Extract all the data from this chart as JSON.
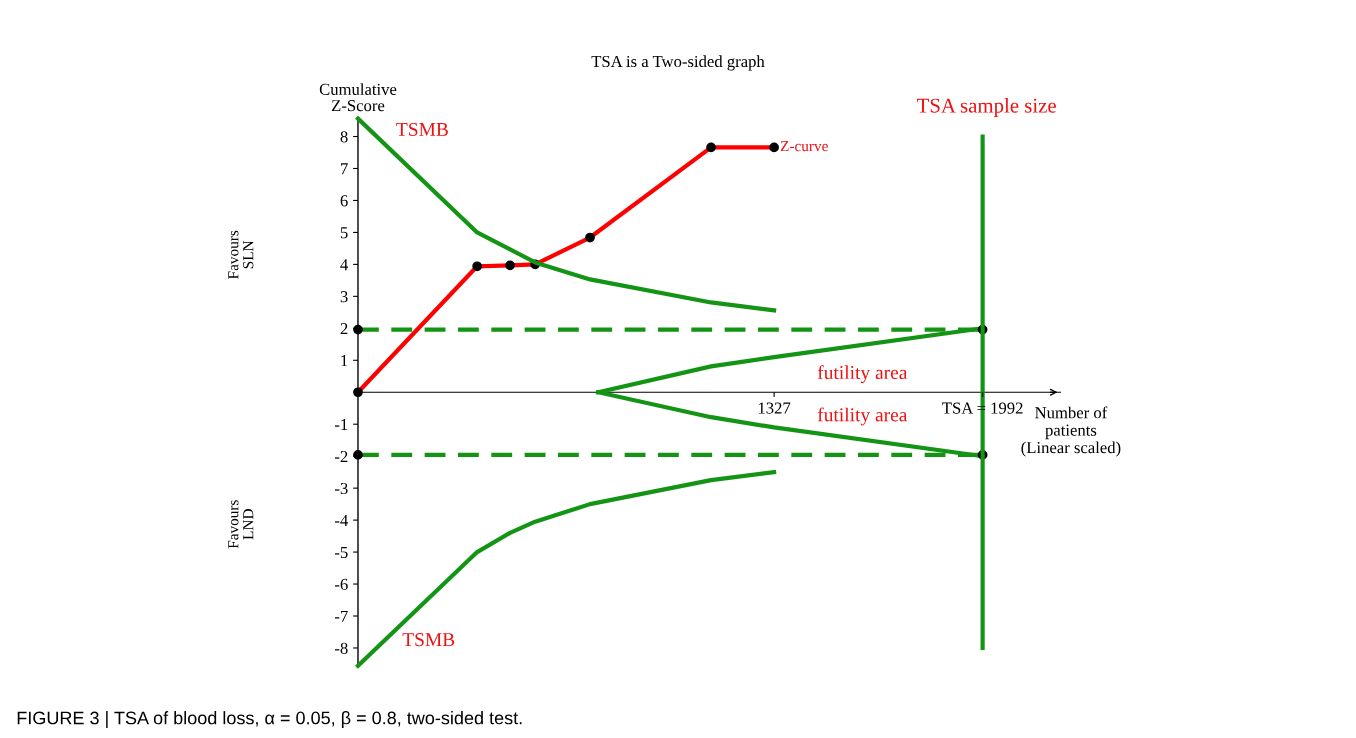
{
  "chart_data": {
    "type": "line",
    "title": "TSA is a Two-sided graph",
    "xlabel": "Number of\npatients\n(Linear scaled)",
    "ylabel": "Cumulative\nZ-Score",
    "xlim": [
      0,
      2240
    ],
    "xticks": [
      1327,
      {
        "value": 1992,
        "label": "TSA = 1992"
      }
    ],
    "grid": false,
    "ylim": [
      -8.6,
      8.6
    ],
    "yticks": [
      -8,
      -7,
      -6,
      -5,
      -4,
      -3,
      -2,
      -1,
      1,
      2,
      3,
      4,
      5,
      6,
      7,
      8
    ],
    "series": [
      {
        "color": "#ff0000",
        "x": [
          0,
          380,
          485,
          565,
          740,
          1126,
          1327
        ],
        "values": [
          0,
          3.94,
          3.97,
          4.0,
          4.84,
          7.66,
          7.66
        ],
        "marker": "circle",
        "line_style": "solid"
      },
      {
        "color": "#149414",
        "x": [
          0,
          380,
          485,
          565,
          740,
          1126,
          1327
        ],
        "values": [
          8.56,
          5.0,
          4.47,
          4.06,
          3.53,
          2.81,
          2.56
        ],
        "marker": "none",
        "line_style": "solid"
      },
      {
        "color": "#149414",
        "x": [
          0,
          380,
          485,
          565,
          740,
          1126,
          1327
        ],
        "values": [
          -8.56,
          -5.0,
          -4.4,
          -4.05,
          -3.5,
          -2.75,
          -2.5
        ],
        "marker": "none",
        "line_style": "solid"
      },
      {
        "color": "#149414",
        "x": [
          766,
          1126,
          1327,
          1992
        ],
        "values": [
          0,
          0.81,
          1.1,
          2.0
        ],
        "marker": "none",
        "line_style": "solid"
      },
      {
        "color": "#149414",
        "x": [
          766,
          1126,
          1327,
          1992
        ],
        "values": [
          0,
          -0.78,
          -1.1,
          -2.0
        ],
        "marker": "none",
        "line_style": "solid"
      },
      {
        "color": "#149414",
        "x": [
          0,
          1992
        ],
        "values": [
          1.96,
          1.96
        ],
        "marker": "circle",
        "line_style": "dashed"
      },
      {
        "color": "#149414",
        "x": [
          0,
          1992
        ],
        "values": [
          -1.96,
          -1.96
        ],
        "marker": "circle",
        "line_style": "dashed"
      }
    ],
    "ref_lines": [
      {
        "axis": "x",
        "value": 1992,
        "color": "#149414",
        "line_style": "solid"
      }
    ],
    "annotations": [
      "TSMB",
      "TSMB",
      {
        "text": "Z-curve",
        "x": 1346,
        "y": 7.66
      },
      "futility area",
      "futility area",
      "TSA sample size",
      "Favours\nSLN",
      "Favours\nLND",
      "FIGURE 3 | TSA of blood loss, α = 0.05, β = 0.8, two-sided test."
    ]
  }
}
